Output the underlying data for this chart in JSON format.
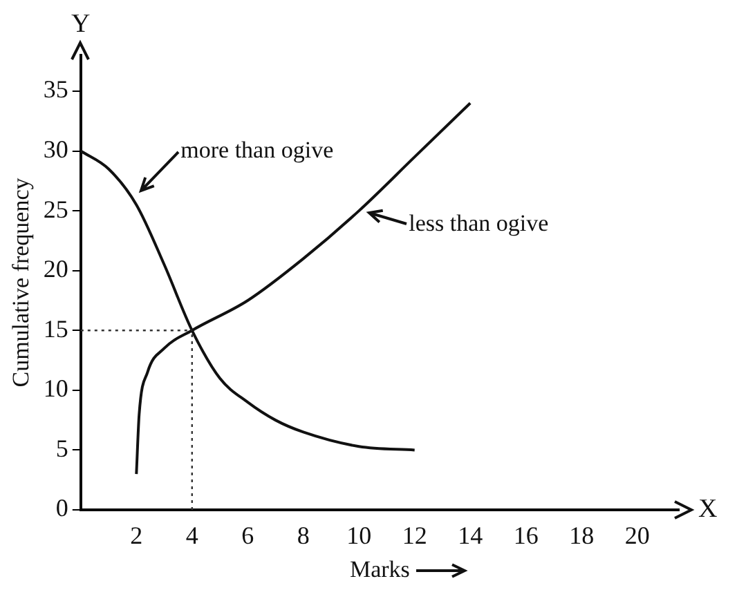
{
  "chart_data": {
    "type": "line",
    "xlabel": "Marks",
    "ylabel": "Cumulative frequency",
    "xlim": [
      0,
      21.5
    ],
    "ylim": [
      0,
      38
    ],
    "xticks": [
      2,
      4,
      6,
      8,
      10,
      12,
      14,
      16,
      18,
      20
    ],
    "yticks": [
      0,
      5,
      10,
      15,
      20,
      25,
      30,
      35
    ],
    "series": [
      {
        "color": "#111111",
        "x": [
          0,
          1,
          2,
          3,
          4,
          5,
          6,
          7,
          8,
          10,
          12
        ],
        "values": [
          30,
          28.5,
          25.5,
          20.5,
          15,
          11,
          9,
          7.5,
          6.5,
          5.3,
          5
        ]
      },
      {
        "color": "#111111",
        "x": [
          2,
          2.1,
          2.4,
          3,
          4,
          6,
          8,
          10,
          12,
          14
        ],
        "values": [
          3,
          8,
          11.5,
          13.5,
          15,
          17.5,
          21,
          25,
          29.5,
          34
        ]
      }
    ],
    "ref_lines": [
      {
        "axis": "y",
        "value": 15,
        "line_style": "dotted",
        "color": "#333333"
      },
      {
        "axis": "x",
        "value": 4,
        "line_style": "dotted",
        "color": "#333333"
      }
    ],
    "annotations": [
      "X",
      "Y",
      {
        "text": "more than ogive",
        "x": 2,
        "y": 26.5
      },
      {
        "text": "less than ogive",
        "x": 10.2,
        "y": 24.8
      }
    ],
    "grid": false,
    "legend": false,
    "marker": "none",
    "line_style": "solid"
  }
}
